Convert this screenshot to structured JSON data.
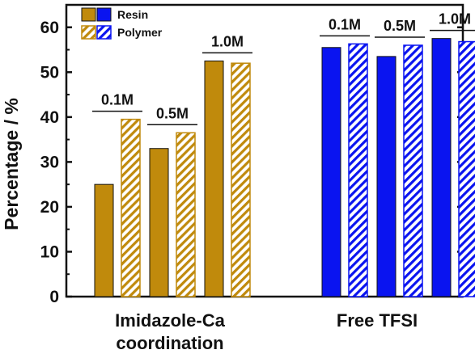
{
  "chart_data": {
    "type": "bar",
    "ylabel": "Percentage / %",
    "ylim": [
      0,
      65
    ],
    "yticks": [
      0,
      10,
      20,
      30,
      40,
      50,
      60
    ],
    "legend": {
      "placement": "top-left",
      "entries": [
        {
          "name": "Resin",
          "pattern": "solid"
        },
        {
          "name": "Polymer",
          "pattern": "hatched"
        }
      ]
    },
    "groups": [
      {
        "label_lines": [
          "Imidazole-Ca",
          "coordination"
        ],
        "color": "#c08a0c",
        "concentrations": [
          {
            "label": "0.1M",
            "resin": 25.0,
            "polymer": 39.5
          },
          {
            "label": "0.5M",
            "resin": 33.0,
            "polymer": 36.5
          },
          {
            "label": "1.0M",
            "resin": 52.5,
            "polymer": 52.0
          }
        ]
      },
      {
        "label_lines": [
          "Free TFSI"
        ],
        "color": "#0a14f0",
        "concentrations": [
          {
            "label": "0.1M",
            "resin": 55.5,
            "polymer": 56.3
          },
          {
            "label": "0.5M",
            "resin": 53.5,
            "polymer": 56.0
          },
          {
            "label": "1.0M",
            "resin": 57.5,
            "polymer": 56.8
          }
        ]
      }
    ]
  }
}
